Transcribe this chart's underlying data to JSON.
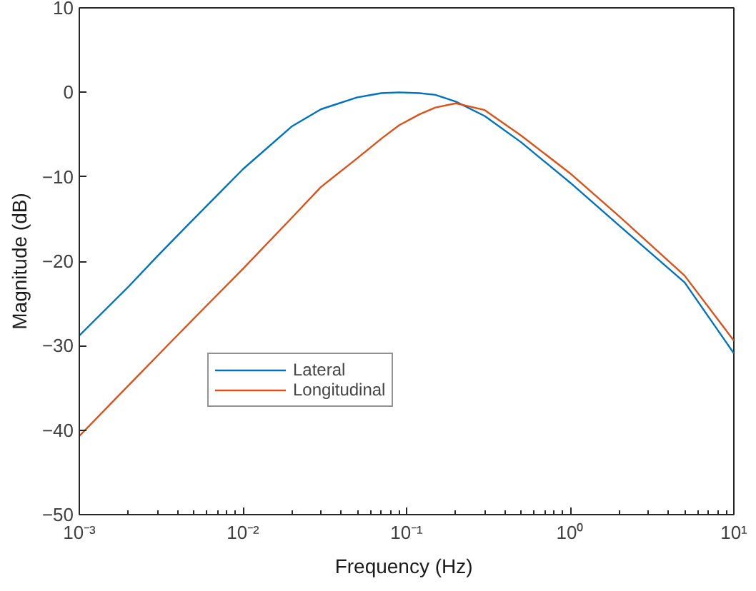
{
  "chart_data": {
    "type": "line",
    "xlabel": "Frequency  (Hz)",
    "ylabel": "Magnitude (dB)",
    "log": "x",
    "xlim": [
      0.001,
      10
    ],
    "ylim": [
      -50,
      10
    ],
    "xticks": [
      {
        "value": 0.001,
        "label": "10⁻³"
      },
      {
        "value": 0.01,
        "label": "10⁻²"
      },
      {
        "value": 0.1,
        "label": "10⁻¹"
      },
      {
        "value": 1,
        "label": "10⁰"
      },
      {
        "value": 10,
        "label": "10¹"
      }
    ],
    "yticks": [
      -50,
      -40,
      -30,
      -20,
      -10,
      0,
      10
    ],
    "grid": false,
    "legend": "bottom left",
    "marker": "none",
    "line_style": "solid",
    "x": [
      0.001,
      0.002,
      0.003,
      0.005,
      0.01,
      0.02,
      0.03,
      0.05,
      0.07,
      0.09,
      0.12,
      0.15,
      0.2,
      0.3,
      0.5,
      1,
      2,
      5,
      10
    ],
    "series": [
      {
        "name": "Lateral",
        "color": "#0072bd",
        "values": [
          -28.8,
          -23,
          -19.4,
          -15,
          -9.1,
          -4.0,
          -2.0,
          -0.6,
          -0.1,
          0,
          -0.1,
          -0.3,
          -1.1,
          -2.8,
          -5.9,
          -10.7,
          -15.8,
          -22.5,
          -30.9
        ]
      },
      {
        "name": "Longitudinal",
        "color": "#d95319",
        "values": [
          -40.7,
          -34.7,
          -31.2,
          -26.8,
          -20.9,
          -14.8,
          -11.2,
          -7.8,
          -5.5,
          -3.9,
          -2.6,
          -1.8,
          -1.3,
          -2.1,
          -5.1,
          -9.6,
          -14.7,
          -21.7,
          -29.4
        ]
      }
    ]
  }
}
